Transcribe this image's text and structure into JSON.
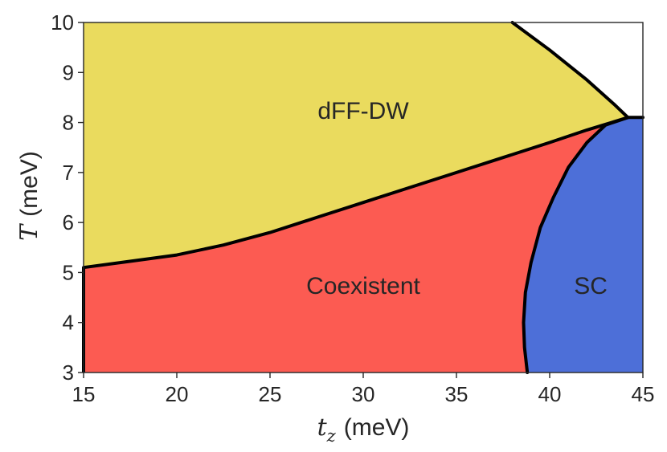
{
  "chart_data": {
    "type": "phase-diagram",
    "title": "",
    "xlabel": {
      "symbol": "t",
      "subscript": "z",
      "unit": "(meV)"
    },
    "ylabel": {
      "symbol": "T",
      "unit": "(meV)"
    },
    "xlim": [
      15,
      45
    ],
    "ylim": [
      3,
      10
    ],
    "xticks": [
      "15",
      "20",
      "25",
      "30",
      "35",
      "40",
      "45"
    ],
    "yticks": [
      "3",
      "4",
      "5",
      "6",
      "7",
      "8",
      "9",
      "10"
    ],
    "colors": {
      "dff_dw": "#eadb5e",
      "coexistent": "#fc5b52",
      "sc": "#4d6fd8",
      "normal": "#ffffff",
      "boundary": "#000000",
      "text": "#262626"
    },
    "regions": [
      {
        "id": "dff_dw",
        "label": "dFF-DW",
        "label_at": [
          30,
          8.2
        ]
      },
      {
        "id": "coexistent",
        "label": "Coexistent",
        "label_at": [
          30,
          4.7
        ]
      },
      {
        "id": "sc",
        "label": "SC",
        "label_at": [
          42.2,
          4.7
        ]
      }
    ],
    "boundaries": {
      "dw_upper": [
        [
          38,
          10
        ],
        [
          40,
          9.45
        ],
        [
          42,
          8.85
        ],
        [
          43.5,
          8.35
        ],
        [
          44.2,
          8.1
        ]
      ],
      "coex_top": [
        [
          15,
          5.1
        ],
        [
          17,
          5.2
        ],
        [
          20,
          5.35
        ],
        [
          22.5,
          5.55
        ],
        [
          25,
          5.8
        ],
        [
          27.5,
          6.1
        ],
        [
          30,
          6.4
        ],
        [
          32.5,
          6.7
        ],
        [
          35,
          7.0
        ],
        [
          37.5,
          7.3
        ],
        [
          40,
          7.6
        ],
        [
          42,
          7.85
        ],
        [
          44.2,
          8.1
        ]
      ],
      "sc_left": [
        [
          38.8,
          3
        ],
        [
          38.65,
          3.5
        ],
        [
          38.6,
          4
        ],
        [
          38.7,
          4.6
        ],
        [
          39,
          5.2
        ],
        [
          39.5,
          5.9
        ],
        [
          40.2,
          6.5
        ],
        [
          41,
          7.1
        ],
        [
          42,
          7.6
        ],
        [
          43,
          7.95
        ],
        [
          44.2,
          8.1
        ]
      ],
      "sc_top": [
        [
          44.2,
          8.1
        ],
        [
          45,
          8.1
        ]
      ]
    }
  }
}
